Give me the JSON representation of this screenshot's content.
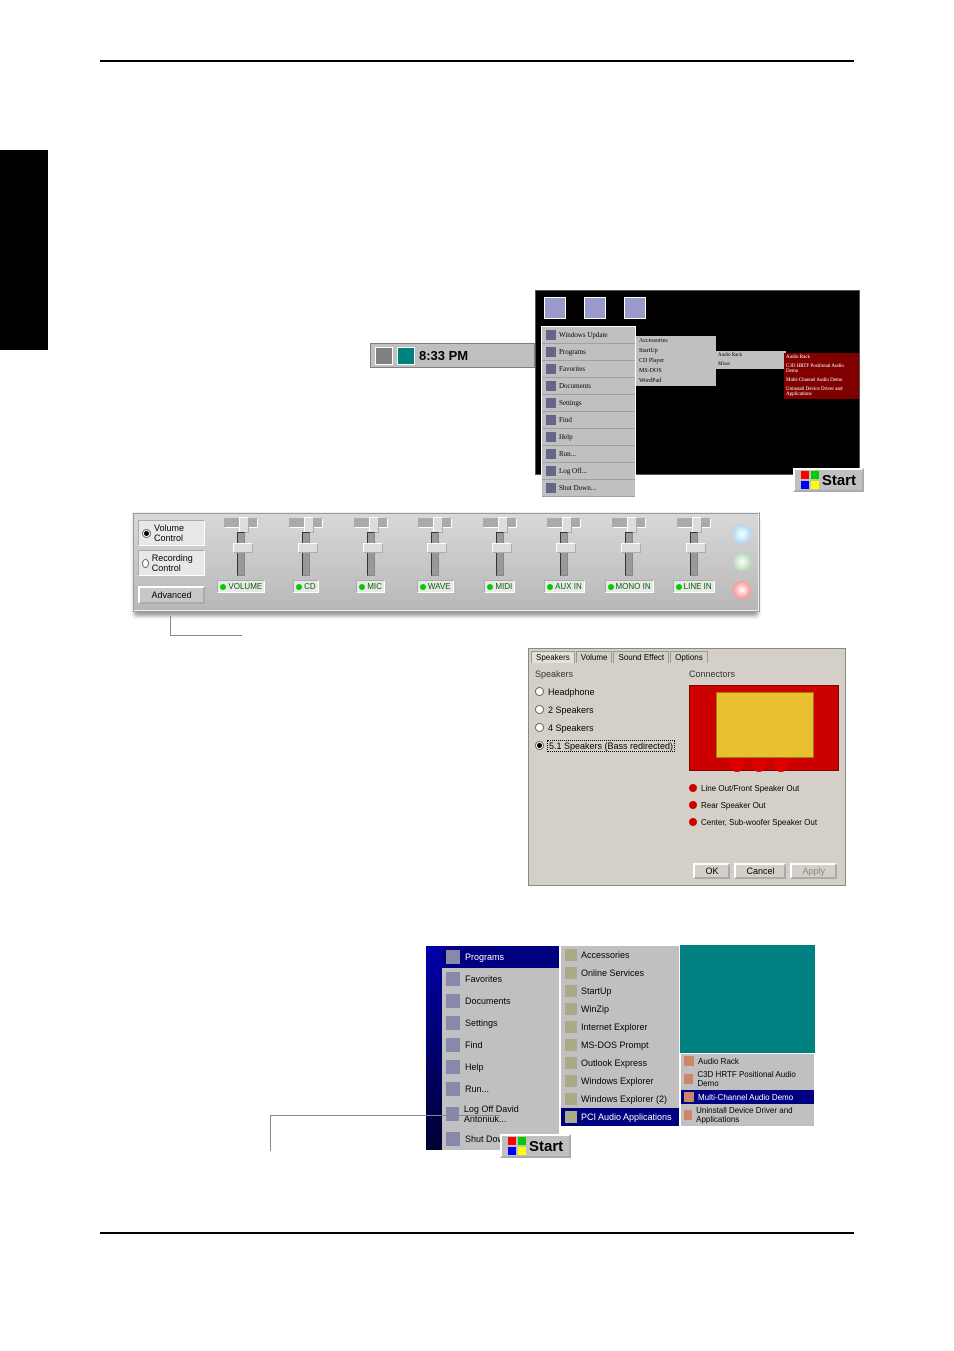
{
  "tray": {
    "time": "8:33 PM"
  },
  "startmenu1": {
    "items": [
      "Windows Update",
      "Programs",
      "Favorites",
      "Documents",
      "Settings",
      "Find",
      "Help",
      "Run...",
      "Log Off...",
      "Shut Down..."
    ],
    "sub1": [
      "Accessories",
      "StartUp",
      "CD Player",
      "MS-DOS",
      "WordPad"
    ],
    "sub2": [
      "Audio Rack",
      "Mixer"
    ],
    "sub3": [
      "Audio Rack",
      "C3D HRTF Positional Audio Demo",
      "Multi-Channel Audio Demo",
      "Uninstall Device Driver and Applications"
    ],
    "start": "Start"
  },
  "mixer": {
    "mode_volume": "Volume Control",
    "mode_recording": "Recording Control",
    "advanced": "Advanced",
    "tracks": [
      "VOLUME",
      "CD",
      "MIC",
      "WAVE",
      "MIDI",
      "AUX IN",
      "MONO IN",
      "LINE IN"
    ]
  },
  "speaker_dialog": {
    "tabs": [
      "Speakers",
      "Volume",
      "Sound Effect",
      "Options"
    ],
    "left_heading": "Speakers",
    "right_heading": "Connectors",
    "options": [
      "Headphone",
      "2 Speakers",
      "4 Speakers",
      "5.1 Speakers (Bass redirected)"
    ],
    "selected_index": 3,
    "legend": [
      "Line Out/Front Speaker Out",
      "Rear Speaker Out",
      "Center, Sub-woofer Speaker Out"
    ],
    "buttons": {
      "ok": "OK",
      "cancel": "Cancel",
      "apply": "Apply"
    },
    "colors": {
      "panel_bg": "#d4d0c8",
      "connector_bg": "#cc0000",
      "card": "#e8c030"
    }
  },
  "startmenu2": {
    "col1": [
      "Programs",
      "Favorites",
      "Documents",
      "Settings",
      "Find",
      "Help",
      "Run...",
      "Log Off David Antoniuk...",
      "Shut Down..."
    ],
    "col1_hl": 0,
    "col2": [
      "Accessories",
      "Online Services",
      "StartUp",
      "WinZip",
      "Internet Explorer",
      "MS-DOS Prompt",
      "Outlook Express",
      "Windows Explorer",
      "Windows Explorer (2)",
      "PCI Audio Applications"
    ],
    "col2_hl": 9,
    "col3": [
      "Audio Rack",
      "C3D HRTF Positional Audio Demo",
      "Multi-Channel Audio Demo",
      "Uninstall Device Driver and Applications"
    ],
    "col3_hl": 2,
    "start": "Start"
  }
}
